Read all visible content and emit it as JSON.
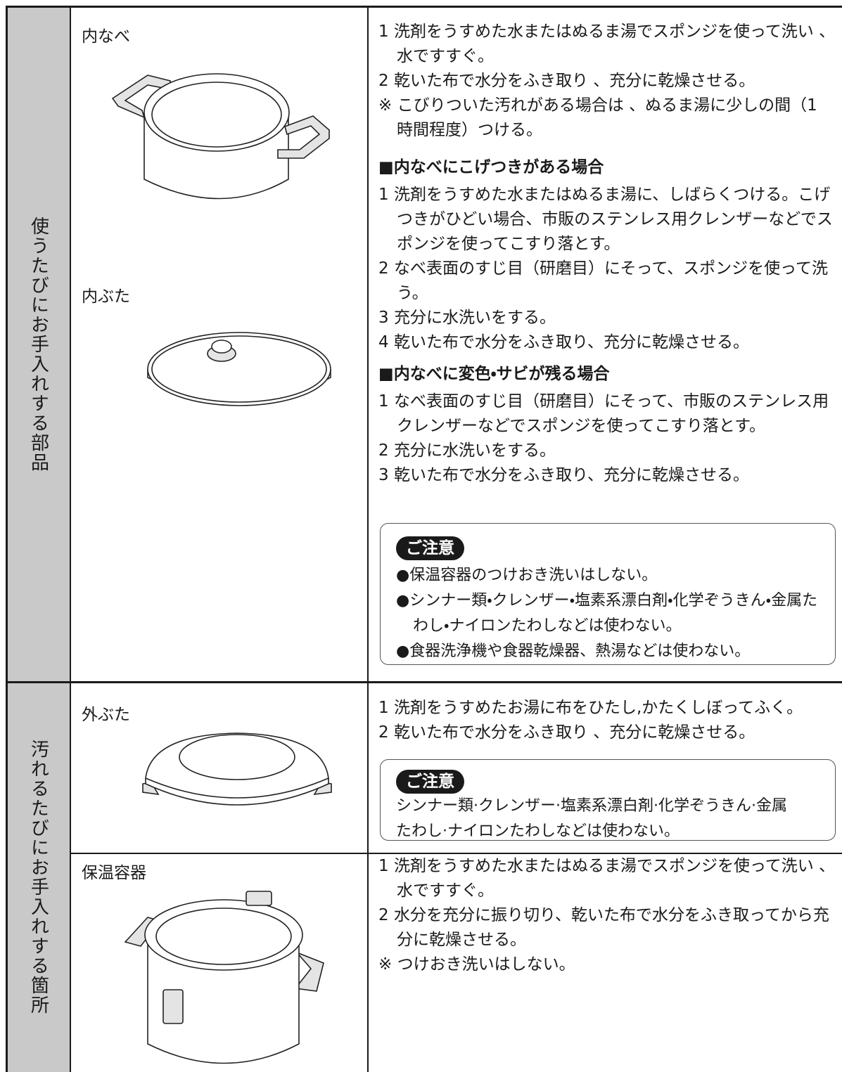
{
  "sections": [
    {
      "label": "使うたびにお手入れする部品",
      "parts": [
        "内なべ",
        "内ぶた"
      ],
      "steps": [
        "1 洗剤をうすめた水またはぬるま湯でスポンジを使って洗い 、水ですすぐ。",
        "2 乾いた布で水分をふき取り 、充分に乾燥させる。",
        "※ こびりついた汚れがある場合は 、ぬるま湯に少しの間（1 時間程度）つける。"
      ],
      "subsections": [
        {
          "heading": "■内なべにこげつきがある場合",
          "steps": [
            "1 洗剤をうすめた水またはぬるま湯に、しばらくつける。こげつきがひどい場合、市販のステンレス用クレンザーなどでスポンジを使ってこすり落とす。",
            "2 なべ表面のすじ目（研磨目）にそって、スポンジを使って洗う。",
            "3 充分に水洗いをする。",
            "4 乾いた布で水分をふき取り、充分に乾燥させる。"
          ]
        },
        {
          "heading": "■内なべに変色・サビが残る場合",
          "steps": [
            "1 なべ表面のすじ目（研磨目）にそって、市販のステンレス用クレンザーなどでスポンジを使ってこすり落とす。",
            "2 充分に水洗いをする。",
            "3 乾いた布で水分をふき取り、充分に乾燥させる。"
          ]
        }
      ],
      "caution": {
        "title": "ご注意",
        "items": [
          "●保温容器のつけおき洗いはしない。",
          "●シンナー類・クレンザー・塩素系漂白剤・化学ぞうきん・金属たわし・ナイロンたわしなどは使わない。",
          "●食器洗浄機や食器乾燥器、熱湯などは使わない。"
        ]
      }
    },
    {
      "label": "汚れるたびにお手入れする箇所",
      "rows": [
        {
          "part": "外ぶた",
          "steps": [
            "1 洗剤をうすめたお湯に布をひたし,かたくしぼってふく。",
            "2 乾いた布で水分をふき取り 、充分に乾燥させる。"
          ],
          "caution": {
            "title": "ご注意",
            "text": "シンナー類·クレンザー·塩素系漂白剤·化学ぞうきん·金属たわし·ナイロンたわしなどは使わない。"
          }
        },
        {
          "part": "保温容器",
          "steps": [
            "1 洗剤をうすめた水またはぬるま湯でスポンジを使って洗い 、水ですすぐ。",
            "2 水分を充分に振り切り、乾いた布で水分をふき取ってから充分に乾燥させる。",
            "※ つけおき洗いはしない。"
          ]
        }
      ]
    }
  ]
}
